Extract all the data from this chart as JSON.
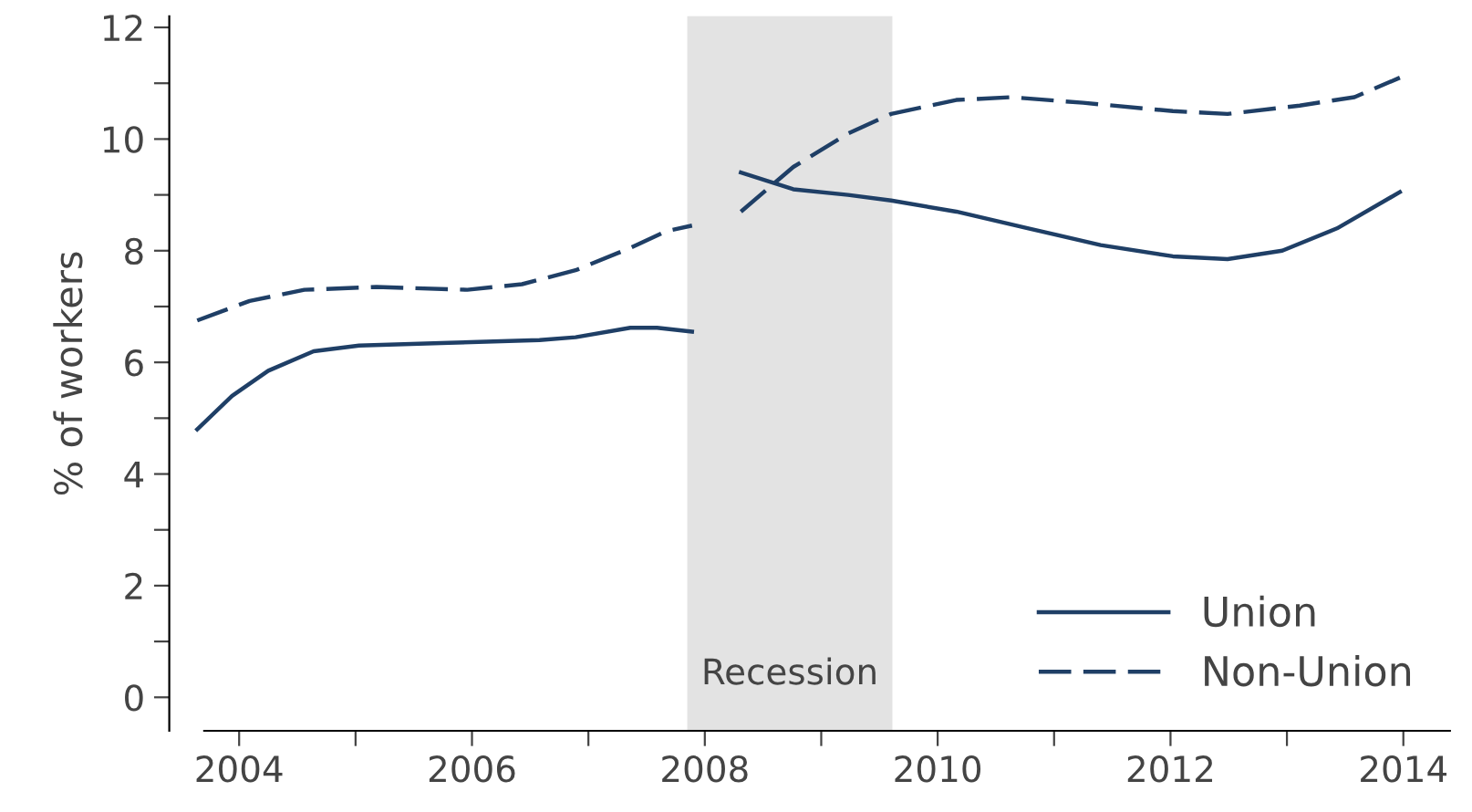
{
  "chart_data": {
    "type": "line",
    "ylabel": "% of workers",
    "legend": "bottom right",
    "xlim": [
      2003.4,
      2014.4
    ],
    "ylim": [
      -0.6,
      12.2
    ],
    "xticks": [
      2004,
      {
        "value": 2005,
        "label": null
      },
      2006,
      {
        "value": 2007,
        "label": null
      },
      2008,
      {
        "value": 2009,
        "label": null
      },
      2010,
      {
        "value": 2011,
        "label": null
      },
      2012,
      {
        "value": 2013,
        "label": null
      },
      2014
    ],
    "yticks": [
      0,
      {
        "value": 1,
        "label": null
      },
      2,
      {
        "value": 3,
        "label": null
      },
      4,
      {
        "value": 5,
        "label": null
      },
      6,
      {
        "value": 7,
        "label": null
      },
      8,
      {
        "value": 9,
        "label": null
      },
      10,
      {
        "value": 11,
        "label": null
      },
      12
    ],
    "bands": [
      {
        "axis": "x",
        "from": 2007.86,
        "to": 2009.6,
        "label": "Recession",
        "color": "#e3e3e3"
      }
    ],
    "series": [
      {
        "name": "Union",
        "color": "#1f3f66",
        "line_style": "solid",
        "x": [
          2003.64,
          2003.94,
          2004.25,
          2004.64,
          2005.03,
          2005.8,
          2006.58,
          2006.89,
          2007.36,
          2007.59,
          2007.89,
          2008.1,
          2008.31,
          2008.76,
          2009.23,
          2009.6,
          2010.16,
          2010.78,
          2011.4,
          2012.02,
          2012.49,
          2012.96,
          2013.43,
          2013.97
        ],
        "values": [
          4.8,
          5.4,
          5.85,
          6.2,
          6.3,
          6.35,
          6.4,
          6.45,
          6.62,
          6.62,
          6.55,
          null,
          9.4,
          9.1,
          9.0,
          8.9,
          8.7,
          8.4,
          8.1,
          7.9,
          7.85,
          8.0,
          8.4,
          9.05
        ]
      },
      {
        "name": "Non-Union",
        "color": "#1f3f66",
        "line_style": "dashed",
        "x": [
          2003.64,
          2004.09,
          2004.56,
          2005.18,
          2005.96,
          2006.43,
          2006.89,
          2007.36,
          2007.67,
          2007.89,
          2008.1,
          2008.31,
          2008.76,
          2009.23,
          2009.6,
          2010.16,
          2010.63,
          2011.25,
          2012.02,
          2012.49,
          2013.11,
          2013.58,
          2013.97
        ],
        "values": [
          6.75,
          7.1,
          7.3,
          7.35,
          7.3,
          7.4,
          7.65,
          8.05,
          8.35,
          8.45,
          null,
          8.7,
          9.5,
          10.1,
          10.45,
          10.7,
          10.75,
          10.65,
          10.5,
          10.45,
          10.6,
          10.75,
          11.1
        ]
      }
    ]
  }
}
